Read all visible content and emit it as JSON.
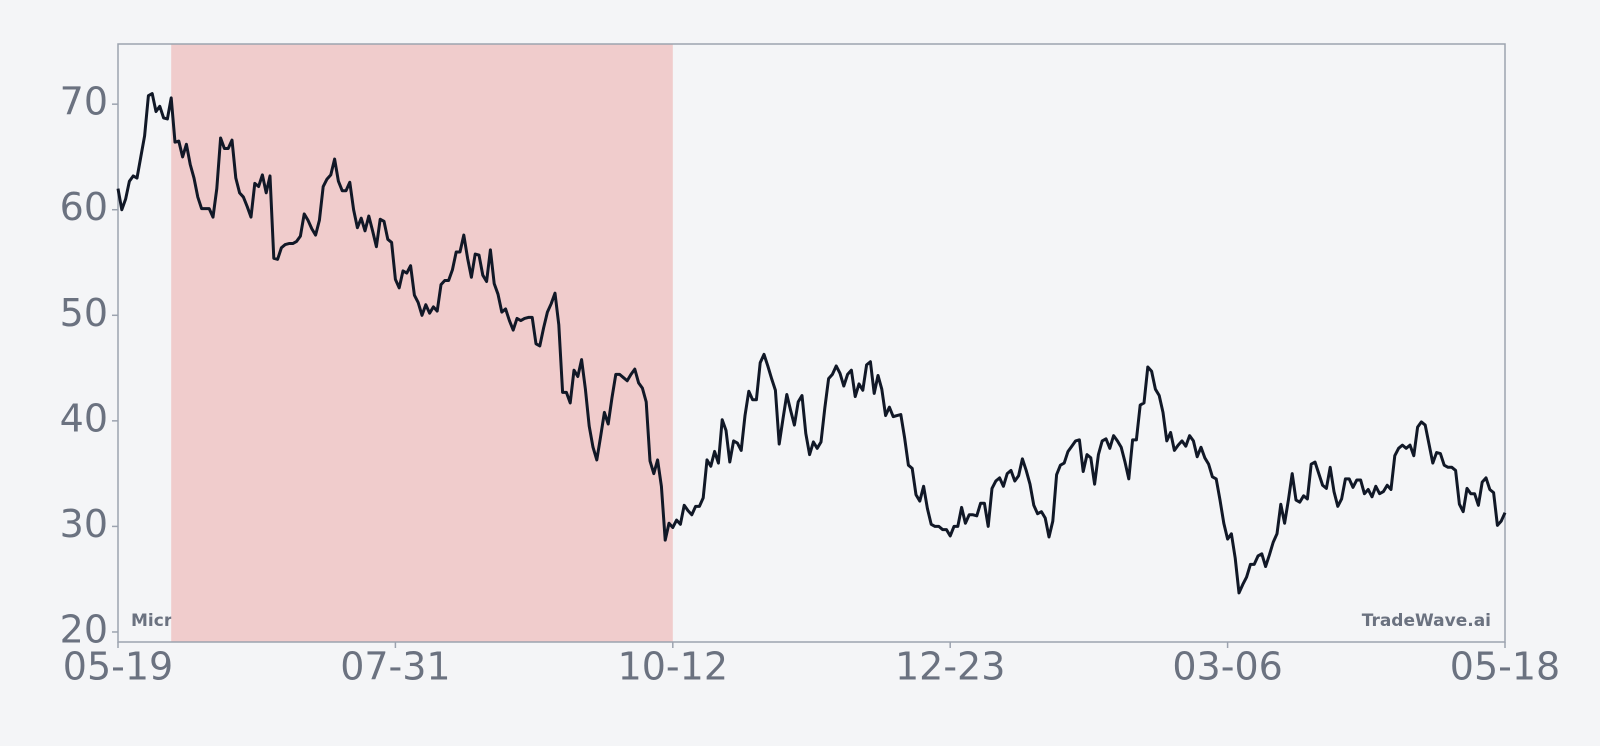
{
  "chart_data": {
    "type": "line",
    "annotations": {
      "left": "Micron Technology",
      "right": "TradeWave.ai"
    },
    "categories": [
      "05-19",
      null,
      null,
      null,
      null,
      null,
      null,
      null,
      null,
      null,
      null,
      null,
      null,
      null,
      null,
      null,
      null,
      null,
      null,
      null,
      null,
      null,
      null,
      null,
      null,
      null,
      null,
      null,
      null,
      null,
      null,
      null,
      null,
      null,
      null,
      null,
      null,
      null,
      null,
      null,
      null,
      null,
      null,
      null,
      null,
      null,
      null,
      null,
      null,
      null,
      null,
      null,
      null,
      null,
      null,
      null,
      null,
      null,
      null,
      null,
      null,
      null,
      null,
      null,
      null,
      null,
      null,
      null,
      null,
      null,
      null,
      null,
      null,
      "07-31",
      null,
      null,
      null,
      null,
      null,
      null,
      null,
      null,
      null,
      null,
      null,
      null,
      null,
      null,
      null,
      null,
      null,
      null,
      null,
      null,
      null,
      null,
      null,
      null,
      null,
      null,
      null,
      null,
      null,
      null,
      null,
      null,
      null,
      null,
      null,
      null,
      null,
      null,
      null,
      null,
      null,
      null,
      null,
      null,
      null,
      null,
      null,
      null,
      null,
      null,
      null,
      null,
      null,
      null,
      null,
      null,
      null,
      null,
      null,
      null,
      null,
      null,
      null,
      null,
      null,
      null,
      null,
      null,
      null,
      null,
      null,
      null,
      "10-12",
      null,
      null,
      null,
      null,
      null,
      null,
      null,
      null,
      null,
      null,
      null,
      null,
      null,
      null,
      null,
      null,
      null,
      null,
      null,
      null,
      null,
      null,
      null,
      null,
      null,
      null,
      null,
      null,
      null,
      null,
      null,
      null,
      null,
      null,
      null,
      null,
      null,
      null,
      null,
      null,
      null,
      null,
      null,
      null,
      null,
      null,
      null,
      null,
      null,
      null,
      null,
      null,
      null,
      null,
      null,
      null,
      null,
      null,
      null,
      null,
      null,
      null,
      null,
      null,
      null,
      null,
      null,
      null,
      null,
      null,
      null,
      null,
      "12-23",
      null,
      null,
      null,
      null,
      null,
      null,
      null,
      null,
      null,
      null,
      null,
      null,
      null,
      null,
      null,
      null,
      null,
      null,
      null,
      null,
      null,
      null,
      null,
      null,
      null,
      null,
      null,
      null,
      null,
      null,
      null,
      null,
      null,
      null,
      null,
      null,
      null,
      null,
      null,
      null,
      null,
      null,
      null,
      null,
      null,
      null,
      null,
      null,
      null,
      null,
      null,
      null,
      null,
      null,
      null,
      null,
      null,
      null,
      null,
      null,
      null,
      null,
      null,
      null,
      null,
      null,
      null,
      null,
      null,
      null,
      null,
      null,
      "03-06",
      null,
      null,
      null,
      null,
      null,
      null,
      null,
      null,
      null,
      null,
      null,
      null,
      null,
      null,
      null,
      null,
      null,
      null,
      null,
      null,
      null,
      null,
      null,
      null,
      null,
      null,
      null,
      null,
      null,
      null,
      null,
      null,
      null,
      null,
      null,
      null,
      null,
      null,
      null,
      null,
      null,
      null,
      null,
      null,
      null,
      null,
      null,
      null,
      null,
      null,
      null,
      null,
      null,
      null,
      null,
      null,
      null,
      null,
      null,
      null,
      null,
      null,
      null,
      null,
      null,
      null,
      null,
      null,
      null,
      null,
      null,
      null,
      "05-18"
    ],
    "values": [
      62,
      60,
      61,
      62.7,
      63.2,
      63,
      65,
      67,
      70.8,
      71,
      69.3,
      69.8,
      68.7,
      68.6,
      70.6,
      66.4,
      66.5,
      65,
      66.2,
      64.3,
      63,
      61.2,
      60.1,
      60.1,
      60.1,
      59.3,
      62,
      66.8,
      65.8,
      65.8,
      66.6,
      63,
      61.6,
      61.2,
      60.3,
      59.3,
      62.5,
      62.2,
      63.3,
      61.6,
      63.2,
      55.4,
      55.3,
      56.4,
      56.7,
      56.8,
      56.8,
      57,
      57.5,
      59.6,
      59,
      58.2,
      57.6,
      59,
      62.2,
      62.9,
      63.3,
      64.8,
      62.7,
      61.8,
      61.8,
      62.6,
      60,
      58.3,
      59.2,
      58,
      59.4,
      58,
      56.5,
      59.1,
      58.9,
      57.2,
      56.9,
      53.4,
      52.6,
      54.2,
      54,
      54.7,
      51.9,
      51.2,
      50,
      51,
      50.2,
      50.8,
      50.4,
      52.9,
      53.3,
      53.3,
      54.3,
      56,
      56,
      57.6,
      55.4,
      53.6,
      55.8,
      55.7,
      53.8,
      53.2,
      56.2,
      53,
      52,
      50.3,
      50.6,
      49.5,
      48.6,
      49.7,
      49.5,
      49.7,
      49.8,
      49.8,
      47.3,
      47.1,
      48.8,
      50.3,
      51.1,
      52.1,
      49.1,
      42.7,
      42.7,
      41.7,
      44.8,
      44.2,
      45.8,
      43,
      39.5,
      37.5,
      36.3,
      38.5,
      40.8,
      39.7,
      42.2,
      44.4,
      44.4,
      44.1,
      43.8,
      44.4,
      44.9,
      43.6,
      43.1,
      41.8,
      36.2,
      35,
      36.3,
      33.8,
      28.7,
      30.3,
      29.9,
      30.6,
      30.2,
      32,
      31.5,
      31.1,
      31.9,
      31.9,
      32.7,
      36.3,
      35.7,
      37.1,
      36,
      40.1,
      39.1,
      36.1,
      38.1,
      37.9,
      37.2,
      40.5,
      42.8,
      42,
      42,
      45.5,
      46.3,
      45.2,
      44,
      42.9,
      37.8,
      40.2,
      42.5,
      41,
      39.6,
      41.8,
      42.4,
      38.8,
      36.8,
      38,
      37.4,
      38,
      41.2,
      44,
      44.4,
      45.2,
      44.5,
      43.3,
      44.4,
      44.8,
      42.3,
      43.5,
      42.9,
      45.3,
      45.6,
      42.6,
      44.3,
      43,
      40.5,
      41.3,
      40.4,
      40.5,
      40.6,
      38.4,
      35.8,
      35.5,
      33,
      32.4,
      33.8,
      31.7,
      30.2,
      30,
      30,
      29.7,
      29.7,
      29.1,
      30,
      30,
      31.8,
      30.3,
      31.1,
      31.1,
      31,
      32.2,
      32.2,
      30,
      33.6,
      34.3,
      34.6,
      33.8,
      35,
      35.3,
      34.3,
      34.8,
      36.4,
      35.3,
      34,
      32,
      31.2,
      31.4,
      30.8,
      29,
      30.5,
      34.9,
      35.8,
      36,
      37.1,
      37.6,
      38.1,
      38.2,
      35.2,
      36.8,
      36.5,
      34,
      36.8,
      38.1,
      38.3,
      37.4,
      38.6,
      38.1,
      37.5,
      36.1,
      34.5,
      38.2,
      38.2,
      41.5,
      41.7,
      45.1,
      44.7,
      43,
      42.4,
      40.8,
      38.1,
      38.9,
      37.2,
      37.7,
      38.1,
      37.6,
      38.6,
      38.1,
      36.6,
      37.5,
      36.5,
      35.9,
      34.7,
      34.5,
      32.5,
      30.3,
      28.8,
      29.3,
      27,
      23.7,
      24.5,
      25.2,
      26.4,
      26.4,
      27.2,
      27.4,
      26.2,
      27.3,
      28.5,
      29.3,
      32.1,
      30.3,
      32.5,
      35,
      32.5,
      32.3,
      32.9,
      32.6,
      35.9,
      36.1,
      35,
      33.9,
      33.6,
      35.6,
      33.3,
      31.9,
      32.6,
      34.5,
      34.5,
      33.7,
      34.4,
      34.4,
      33.1,
      33.5,
      32.8,
      33.8,
      33.1,
      33.3,
      33.9,
      33.5,
      36.7,
      37.4,
      37.7,
      37.4,
      37.7,
      36.7,
      39.4,
      39.9,
      39.6,
      37.8,
      36,
      37,
      36.9,
      35.8,
      35.6,
      35.6,
      35.3,
      32.1,
      31.4,
      33.6,
      33.1,
      33.1,
      32,
      34.2,
      34.6,
      33.5,
      33.2,
      30.1,
      30.5,
      31.3
    ],
    "color": "#111827",
    "shade": {
      "from": 14,
      "to": 146,
      "color": "#f0cccc"
    },
    "ylim": [
      19.05,
      75.7
    ],
    "yticks": [
      20,
      30,
      40,
      50,
      60,
      70
    ]
  }
}
